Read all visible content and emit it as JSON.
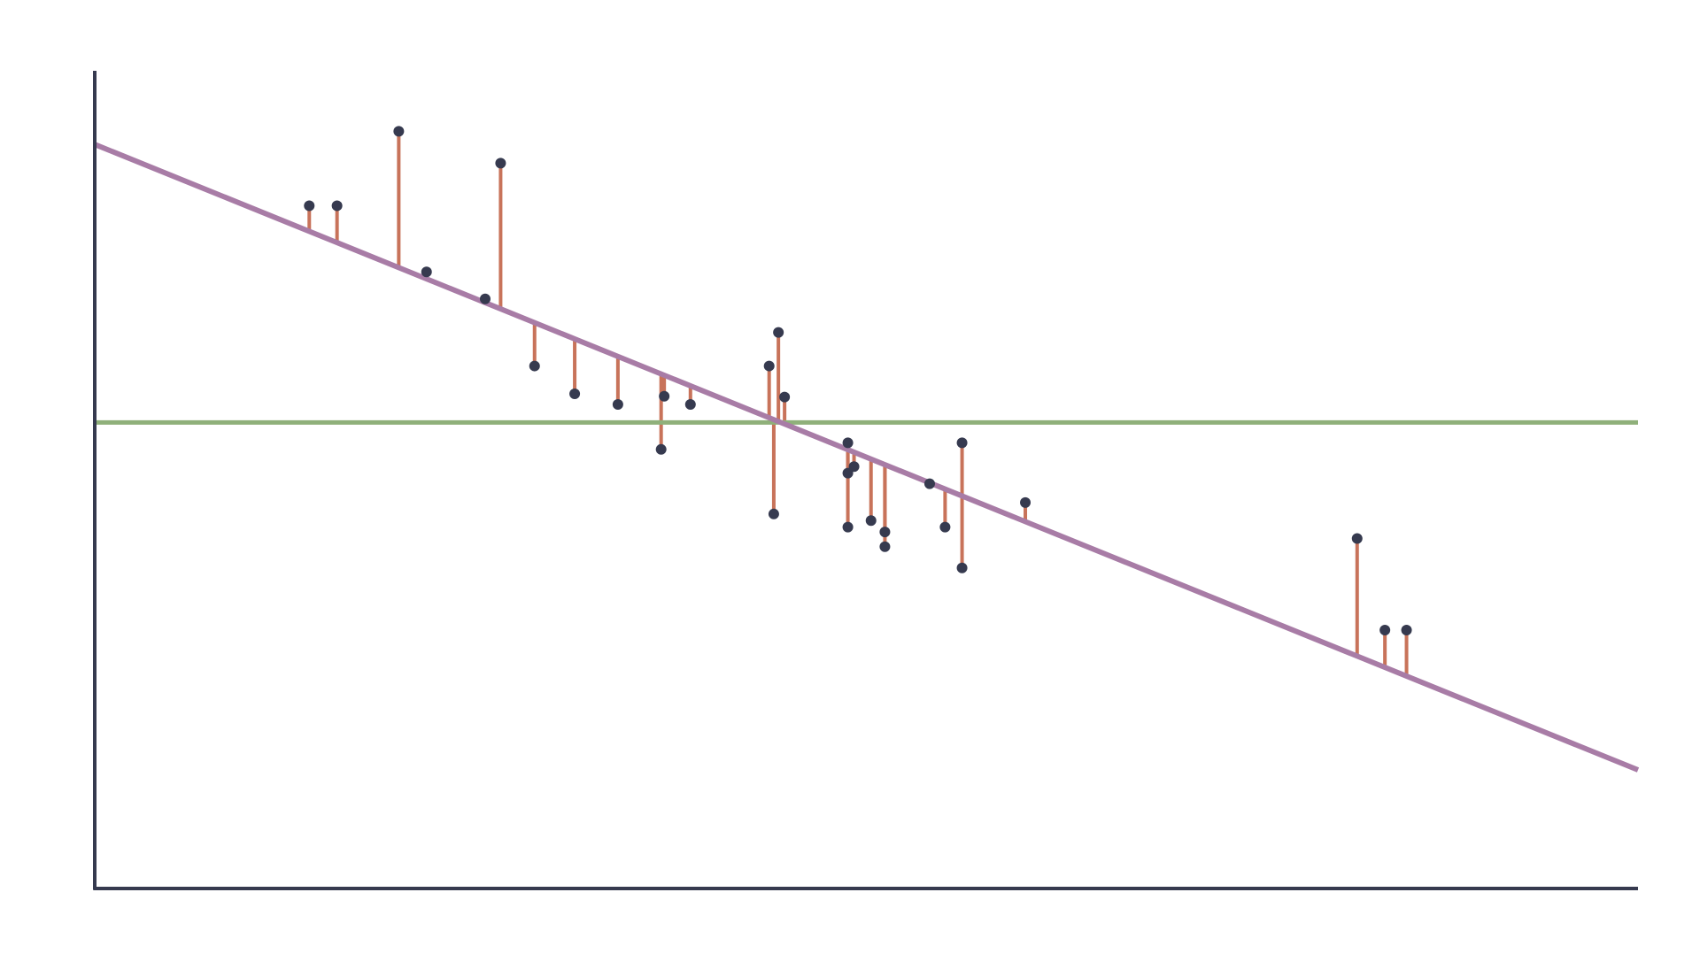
{
  "colors": {
    "background": "#ffffff",
    "axis": "#363a4f",
    "regression_line": "#a87ca6",
    "mean_line": "#8fb07a",
    "residual": "#c8735a",
    "point": "#363a4f"
  },
  "chart_data": {
    "type": "scatter",
    "title": "",
    "xlabel": "",
    "ylabel": "",
    "grid": false,
    "legend": "none",
    "xlim": [
      0,
      1
    ],
    "ylim": [
      0,
      1
    ],
    "fit_line": {
      "intercept": 0.91,
      "slope": -0.765
    },
    "mean_line": {
      "y": 0.57
    },
    "points": [
      {
        "x": 0.139,
        "y": 0.835
      },
      {
        "x": 0.157,
        "y": 0.835
      },
      {
        "x": 0.197,
        "y": 0.926
      },
      {
        "x": 0.215,
        "y": 0.754
      },
      {
        "x": 0.253,
        "y": 0.721
      },
      {
        "x": 0.263,
        "y": 0.887
      },
      {
        "x": 0.285,
        "y": 0.639
      },
      {
        "x": 0.311,
        "y": 0.605
      },
      {
        "x": 0.339,
        "y": 0.592
      },
      {
        "x": 0.367,
        "y": 0.537
      },
      {
        "x": 0.369,
        "y": 0.602
      },
      {
        "x": 0.386,
        "y": 0.592
      },
      {
        "x": 0.437,
        "y": 0.639
      },
      {
        "x": 0.44,
        "y": 0.458
      },
      {
        "x": 0.443,
        "y": 0.68
      },
      {
        "x": 0.447,
        "y": 0.601
      },
      {
        "x": 0.488,
        "y": 0.545
      },
      {
        "x": 0.488,
        "y": 0.508
      },
      {
        "x": 0.488,
        "y": 0.442
      },
      {
        "x": 0.492,
        "y": 0.516
      },
      {
        "x": 0.503,
        "y": 0.45
      },
      {
        "x": 0.512,
        "y": 0.436
      },
      {
        "x": 0.512,
        "y": 0.418
      },
      {
        "x": 0.541,
        "y": 0.495
      },
      {
        "x": 0.551,
        "y": 0.442
      },
      {
        "x": 0.562,
        "y": 0.545
      },
      {
        "x": 0.562,
        "y": 0.392
      },
      {
        "x": 0.603,
        "y": 0.472
      },
      {
        "x": 0.818,
        "y": 0.428
      },
      {
        "x": 0.836,
        "y": 0.316
      },
      {
        "x": 0.85,
        "y": 0.316
      }
    ]
  }
}
